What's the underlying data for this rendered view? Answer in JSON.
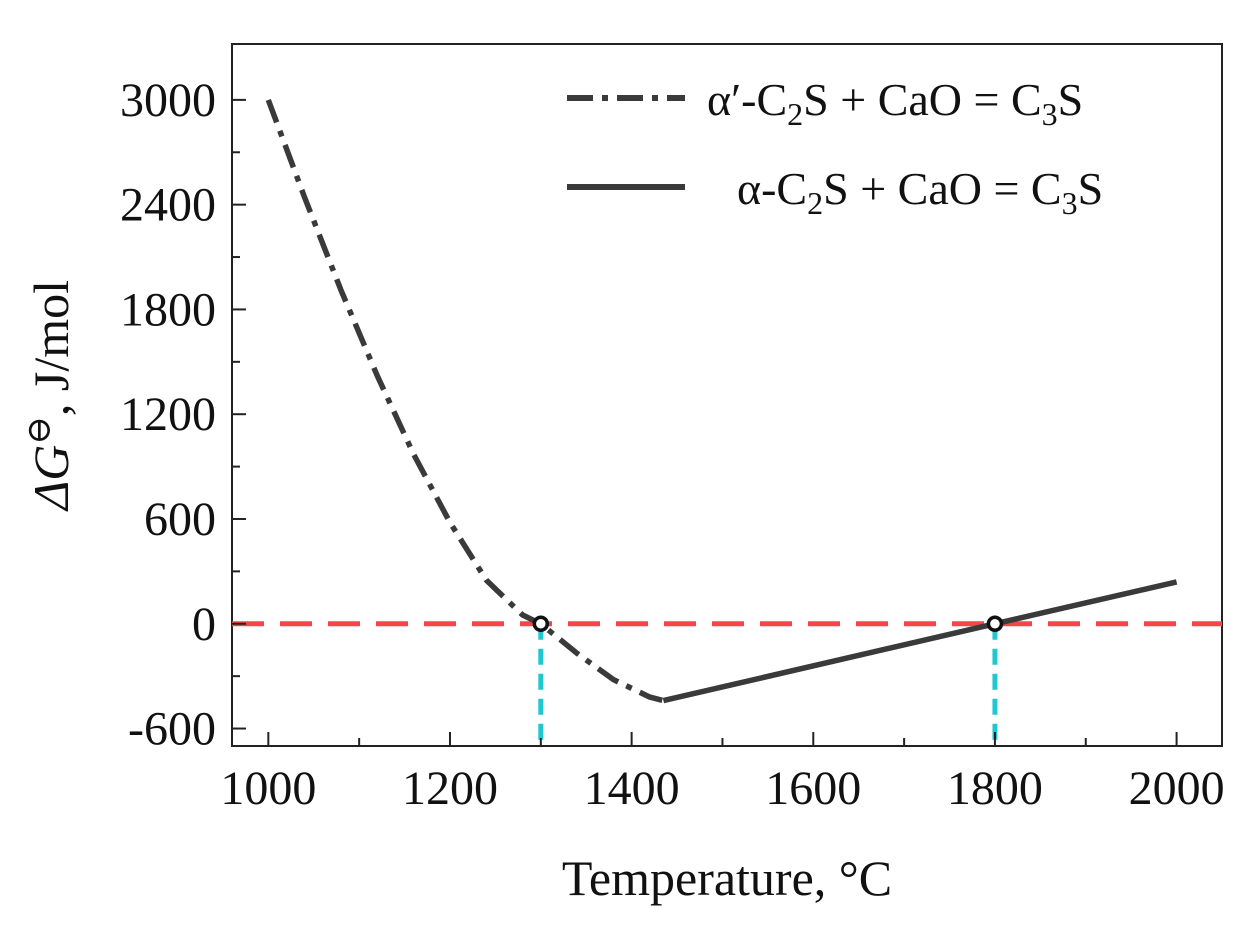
{
  "chart_data": {
    "type": "line",
    "xlabel": "Temperature, °C",
    "ylabel_parts": [
      "ΔG",
      "⊖",
      ", J/mol"
    ],
    "xlim": [
      960,
      2050
    ],
    "ylim": [
      -700,
      3320
    ],
    "x_ticks": [
      1000,
      1200,
      1400,
      1600,
      1800,
      2000
    ],
    "x_minor_ticks": [
      1100,
      1300,
      1500,
      1700,
      1900
    ],
    "y_ticks": [
      -600,
      0,
      600,
      1200,
      1800,
      2400,
      3000
    ],
    "y_minor_ticks": [
      -300,
      300,
      900,
      1500,
      2100,
      2700
    ],
    "series": [
      {
        "name": "α′-C2S + CaO = C3S",
        "legend_parts": [
          "α′-C",
          "2",
          "S + CaO = C",
          "3",
          "S"
        ],
        "style": "dashdot",
        "color": "#3a3a3a",
        "x": [
          1000,
          1040,
          1080,
          1120,
          1160,
          1200,
          1240,
          1280,
          1300,
          1340,
          1380,
          1420,
          1435
        ],
        "y": [
          3000,
          2440,
          1910,
          1420,
          970,
          580,
          250,
          50,
          0,
          -170,
          -320,
          -420,
          -440
        ]
      },
      {
        "name": "α-C2S + CaO = C3S",
        "legend_parts": [
          "α-C",
          "2",
          "S + CaO = C",
          "3",
          "S"
        ],
        "style": "solid",
        "color": "#3a3a3a",
        "x": [
          1435,
          1800,
          2000
        ],
        "y": [
          -440,
          0,
          240
        ]
      }
    ],
    "reference_lines": [
      {
        "type": "horizontal",
        "y": 0,
        "color": "#f0484a",
        "style": "dashed"
      },
      {
        "type": "vertical",
        "x": 1300,
        "from_y": -700,
        "to_y": 0,
        "color": "#1fc7cf",
        "style": "dashed"
      },
      {
        "type": "vertical",
        "x": 1800,
        "from_y": -700,
        "to_y": 0,
        "color": "#1fc7cf",
        "style": "dashed"
      }
    ],
    "markers": [
      {
        "x": 1300,
        "y": 0,
        "shape": "open-circle"
      },
      {
        "x": 1800,
        "y": 0,
        "shape": "open-circle"
      }
    ],
    "legend_position": "top-right",
    "grid": false
  }
}
